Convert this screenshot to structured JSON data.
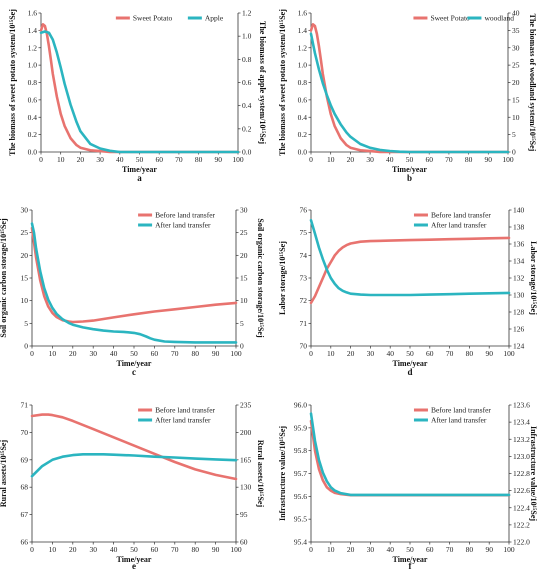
{
  "colors": {
    "series1": "#e8736f",
    "series2": "#2bb5c0"
  },
  "chart_data": [
    {
      "type": "line",
      "panel_label": "a",
      "xlabel": "Time/year",
      "xlim": [
        0,
        100
      ],
      "xticks": [
        0,
        10,
        20,
        30,
        40,
        50,
        60,
        70,
        80,
        90,
        100
      ],
      "left_axis": {
        "label": "The biomass of sweet potato system/10¹⁵Sej",
        "lim": [
          0,
          1.6
        ],
        "ticks": [
          0,
          0.2,
          0.4,
          0.6,
          0.8,
          1.0,
          1.2,
          1.4,
          1.6
        ]
      },
      "right_axis": {
        "label": "The biomass of apple system/10¹⁵Sej",
        "lim": [
          0,
          1.2
        ],
        "ticks": [
          0,
          0.2,
          0.4,
          0.6,
          0.8,
          1.0,
          1.2
        ]
      },
      "legend_position": "top-center",
      "series": [
        {
          "name": "Sweet Potato",
          "axis": "left",
          "color": "#e8736f",
          "x": [
            0,
            1,
            2,
            3,
            4,
            5,
            6,
            8,
            10,
            12,
            15,
            18,
            20,
            25,
            30,
            35,
            40,
            50,
            60,
            70,
            80,
            90,
            100
          ],
          "y": [
            1.4,
            1.47,
            1.45,
            1.36,
            1.22,
            1.06,
            0.9,
            0.64,
            0.44,
            0.3,
            0.16,
            0.08,
            0.05,
            0.02,
            0.01,
            0,
            0,
            0,
            0,
            0,
            0,
            0,
            0
          ]
        },
        {
          "name": "Apple",
          "axis": "right",
          "color": "#2bb5c0",
          "x": [
            0,
            2,
            4,
            6,
            8,
            10,
            12,
            15,
            18,
            20,
            25,
            30,
            35,
            40,
            45,
            50,
            60,
            70,
            80,
            90,
            100
          ],
          "y": [
            1.03,
            1.04,
            1.03,
            0.97,
            0.86,
            0.73,
            0.59,
            0.41,
            0.26,
            0.18,
            0.07,
            0.03,
            0.01,
            0,
            0,
            0,
            0,
            0,
            0,
            0,
            0
          ]
        }
      ]
    },
    {
      "type": "line",
      "panel_label": "b",
      "xlabel": "Time/year",
      "xlim": [
        0,
        100
      ],
      "xticks": [
        0,
        10,
        20,
        30,
        40,
        50,
        60,
        70,
        80,
        90,
        100
      ],
      "left_axis": {
        "label": "The biomass of sweet potato system/10¹⁵Sej",
        "lim": [
          0,
          1.6
        ],
        "ticks": [
          0,
          0.2,
          0.4,
          0.6,
          0.8,
          1.0,
          1.2,
          1.4,
          1.6
        ]
      },
      "right_axis": {
        "label": "The biomass of woodland system/10¹⁵Sej",
        "lim": [
          0,
          40
        ],
        "ticks": [
          0,
          5,
          10,
          15,
          20,
          25,
          30,
          35,
          40
        ]
      },
      "legend_position": "top-right",
      "series": [
        {
          "name": "Sweet Potato",
          "axis": "left",
          "color": "#e8736f",
          "x": [
            0,
            1,
            2,
            3,
            4,
            5,
            6,
            8,
            10,
            12,
            15,
            18,
            20,
            25,
            30,
            35,
            40,
            50,
            60,
            70,
            80,
            90,
            100
          ],
          "y": [
            1.4,
            1.47,
            1.45,
            1.36,
            1.22,
            1.06,
            0.9,
            0.64,
            0.44,
            0.3,
            0.16,
            0.08,
            0.05,
            0.02,
            0.01,
            0,
            0,
            0,
            0,
            0,
            0,
            0,
            0
          ]
        },
        {
          "name": "woodland",
          "axis": "right",
          "color": "#2bb5c0",
          "x": [
            0,
            2,
            4,
            6,
            8,
            10,
            12,
            15,
            18,
            20,
            25,
            30,
            35,
            40,
            45,
            50,
            60,
            70,
            80,
            90,
            100
          ],
          "y": [
            34,
            28.5,
            23.8,
            19.8,
            16.4,
            13.5,
            11.0,
            8.0,
            5.6,
            4.4,
            2.3,
            1.2,
            0.6,
            0.3,
            0.1,
            0,
            0,
            0,
            0,
            0,
            0
          ]
        }
      ]
    },
    {
      "type": "line",
      "panel_label": "c",
      "xlabel": "Time/year",
      "xlim": [
        0,
        100
      ],
      "xticks": [
        0,
        10,
        20,
        30,
        40,
        50,
        60,
        70,
        80,
        90,
        100
      ],
      "left_axis": {
        "label": "Soil organic carbon storage/10¹⁵Sej",
        "lim": [
          0,
          30
        ],
        "ticks": [
          0,
          5,
          10,
          15,
          20,
          25,
          30
        ]
      },
      "right_axis": {
        "label": "Soil organic carbon storage/10¹⁵Sej",
        "lim": [
          0,
          30
        ],
        "ticks": [
          0,
          5,
          10,
          15,
          20,
          25,
          30
        ]
      },
      "legend_position": "top-right",
      "series": [
        {
          "name": "Before land transfer",
          "axis": "left",
          "color": "#e8736f",
          "x": [
            0,
            2,
            4,
            6,
            8,
            10,
            12,
            15,
            18,
            20,
            25,
            30,
            40,
            50,
            60,
            70,
            80,
            90,
            100
          ],
          "y": [
            26,
            19.5,
            14.5,
            11,
            8.7,
            7.3,
            6.4,
            5.7,
            5.4,
            5.3,
            5.4,
            5.6,
            6.3,
            7.0,
            7.6,
            8.1,
            8.6,
            9.1,
            9.5
          ]
        },
        {
          "name": "After land transfer",
          "axis": "left",
          "color": "#2bb5c0",
          "x": [
            0,
            1,
            2,
            4,
            6,
            8,
            10,
            12,
            15,
            18,
            20,
            25,
            30,
            35,
            40,
            45,
            50,
            53,
            56,
            58,
            60,
            65,
            70,
            80,
            90,
            100
          ],
          "y": [
            27,
            25,
            21.5,
            16.5,
            12.8,
            10.2,
            8.4,
            7.1,
            5.9,
            5.1,
            4.7,
            4.1,
            3.7,
            3.4,
            3.2,
            3.1,
            2.9,
            2.6,
            2.1,
            1.7,
            1.4,
            1.0,
            0.9,
            0.8,
            0.8,
            0.8
          ]
        }
      ]
    },
    {
      "type": "line",
      "panel_label": "d",
      "xlabel": "Time/year",
      "xlim": [
        0,
        100
      ],
      "xticks": [
        0,
        10,
        20,
        30,
        40,
        50,
        60,
        70,
        80,
        90,
        100
      ],
      "left_axis": {
        "label": "Labor storage/10¹⁵Sej",
        "lim": [
          70,
          76
        ],
        "ticks": [
          70,
          71,
          72,
          73,
          74,
          75,
          76
        ]
      },
      "right_axis": {
        "label": "Labor storage/10¹⁵Sej",
        "lim": [
          124,
          140
        ],
        "ticks": [
          124,
          126,
          128,
          130,
          132,
          134,
          136,
          138,
          140
        ]
      },
      "legend_position": "top-right",
      "series": [
        {
          "name": "Before land transfer",
          "axis": "left",
          "color": "#e8736f",
          "x": [
            0,
            2,
            4,
            6,
            8,
            10,
            12,
            14,
            16,
            18,
            20,
            25,
            30,
            40,
            50,
            60,
            70,
            80,
            90,
            100
          ],
          "y": [
            71.9,
            72.2,
            72.6,
            73.0,
            73.4,
            73.7,
            74.0,
            74.2,
            74.35,
            74.45,
            74.52,
            74.6,
            74.63,
            74.65,
            74.67,
            74.69,
            74.71,
            74.73,
            74.75,
            74.77
          ]
        },
        {
          "name": "After land transfer",
          "axis": "right",
          "color": "#2bb5c0",
          "x": [
            0,
            2,
            4,
            6,
            8,
            10,
            12,
            14,
            16,
            18,
            20,
            25,
            30,
            40,
            50,
            60,
            70,
            80,
            90,
            100
          ],
          "y": [
            138.8,
            137.2,
            135.6,
            134.2,
            133.0,
            132.0,
            131.3,
            130.8,
            130.5,
            130.3,
            130.15,
            130.05,
            130.0,
            130.0,
            130.0,
            130.05,
            130.1,
            130.15,
            130.2,
            130.25
          ]
        }
      ]
    },
    {
      "type": "line",
      "panel_label": "e",
      "xlabel": "Time/year",
      "xlim": [
        0,
        100
      ],
      "xticks": [
        0,
        10,
        20,
        30,
        40,
        50,
        60,
        70,
        80,
        90,
        100
      ],
      "left_axis": {
        "label": "Rural assets/10¹⁵Sej",
        "lim": [
          66,
          71
        ],
        "ticks": [
          66,
          67,
          68,
          69,
          70,
          71
        ]
      },
      "right_axis": {
        "label": "Rural assets/10¹⁵Sej",
        "lim": [
          60,
          235
        ],
        "ticks": [
          60,
          95,
          130,
          165,
          200,
          235
        ]
      },
      "legend_position": "top-right",
      "series": [
        {
          "name": "Before land transfer",
          "axis": "left",
          "color": "#e8736f",
          "x": [
            0,
            5,
            8,
            10,
            15,
            20,
            30,
            40,
            50,
            60,
            70,
            80,
            90,
            100
          ],
          "y": [
            70.6,
            70.65,
            70.65,
            70.63,
            70.55,
            70.42,
            70.12,
            69.82,
            69.52,
            69.22,
            68.92,
            68.65,
            68.45,
            68.3
          ]
        },
        {
          "name": "After land transfer",
          "axis": "right",
          "color": "#2bb5c0",
          "x": [
            0,
            5,
            10,
            15,
            20,
            25,
            30,
            35,
            40,
            50,
            60,
            70,
            80,
            90,
            100
          ],
          "y": [
            144,
            157,
            165,
            169,
            171,
            172,
            172,
            172,
            171.5,
            170.5,
            169,
            168,
            166.5,
            165.5,
            164.5
          ]
        }
      ]
    },
    {
      "type": "line",
      "panel_label": "f",
      "xlabel": "Time/year",
      "xlim": [
        0,
        100
      ],
      "xticks": [
        0,
        10,
        20,
        30,
        40,
        50,
        60,
        70,
        80,
        90,
        100
      ],
      "left_axis": {
        "label": "Infrastructure value/10¹⁵Sej",
        "lim": [
          95.4,
          96.0
        ],
        "ticks": [
          95.4,
          95.5,
          95.6,
          95.7,
          95.8,
          95.9,
          96.0
        ]
      },
      "right_axis": {
        "label": "Infrastructure value/10¹⁵Sej",
        "lim": [
          122.0,
          123.6
        ],
        "ticks": [
          122.0,
          122.2,
          122.4,
          122.6,
          122.8,
          123.0,
          123.2,
          123.4,
          123.6
        ]
      },
      "legend_position": "top-right",
      "series": [
        {
          "name": "Before land transfer",
          "axis": "left",
          "color": "#e8736f",
          "x": [
            0,
            2,
            4,
            6,
            8,
            10,
            12,
            15,
            20,
            25,
            30,
            40,
            50,
            60,
            70,
            80,
            90,
            100
          ],
          "y": [
            95.93,
            95.8,
            95.72,
            95.67,
            95.64,
            95.625,
            95.615,
            95.61,
            95.605,
            95.605,
            95.605,
            95.605,
            95.605,
            95.605,
            95.605,
            95.605,
            95.605,
            95.605
          ]
        },
        {
          "name": "After land transfer",
          "axis": "right",
          "color": "#2bb5c0",
          "x": [
            0,
            2,
            4,
            6,
            8,
            10,
            12,
            15,
            20,
            25,
            30,
            40,
            50,
            60,
            70,
            80,
            90,
            100
          ],
          "y": [
            123.5,
            123.18,
            122.96,
            122.81,
            122.71,
            122.64,
            122.6,
            122.57,
            122.55,
            122.55,
            122.55,
            122.55,
            122.55,
            122.55,
            122.55,
            122.55,
            122.55,
            122.55
          ]
        }
      ]
    }
  ]
}
